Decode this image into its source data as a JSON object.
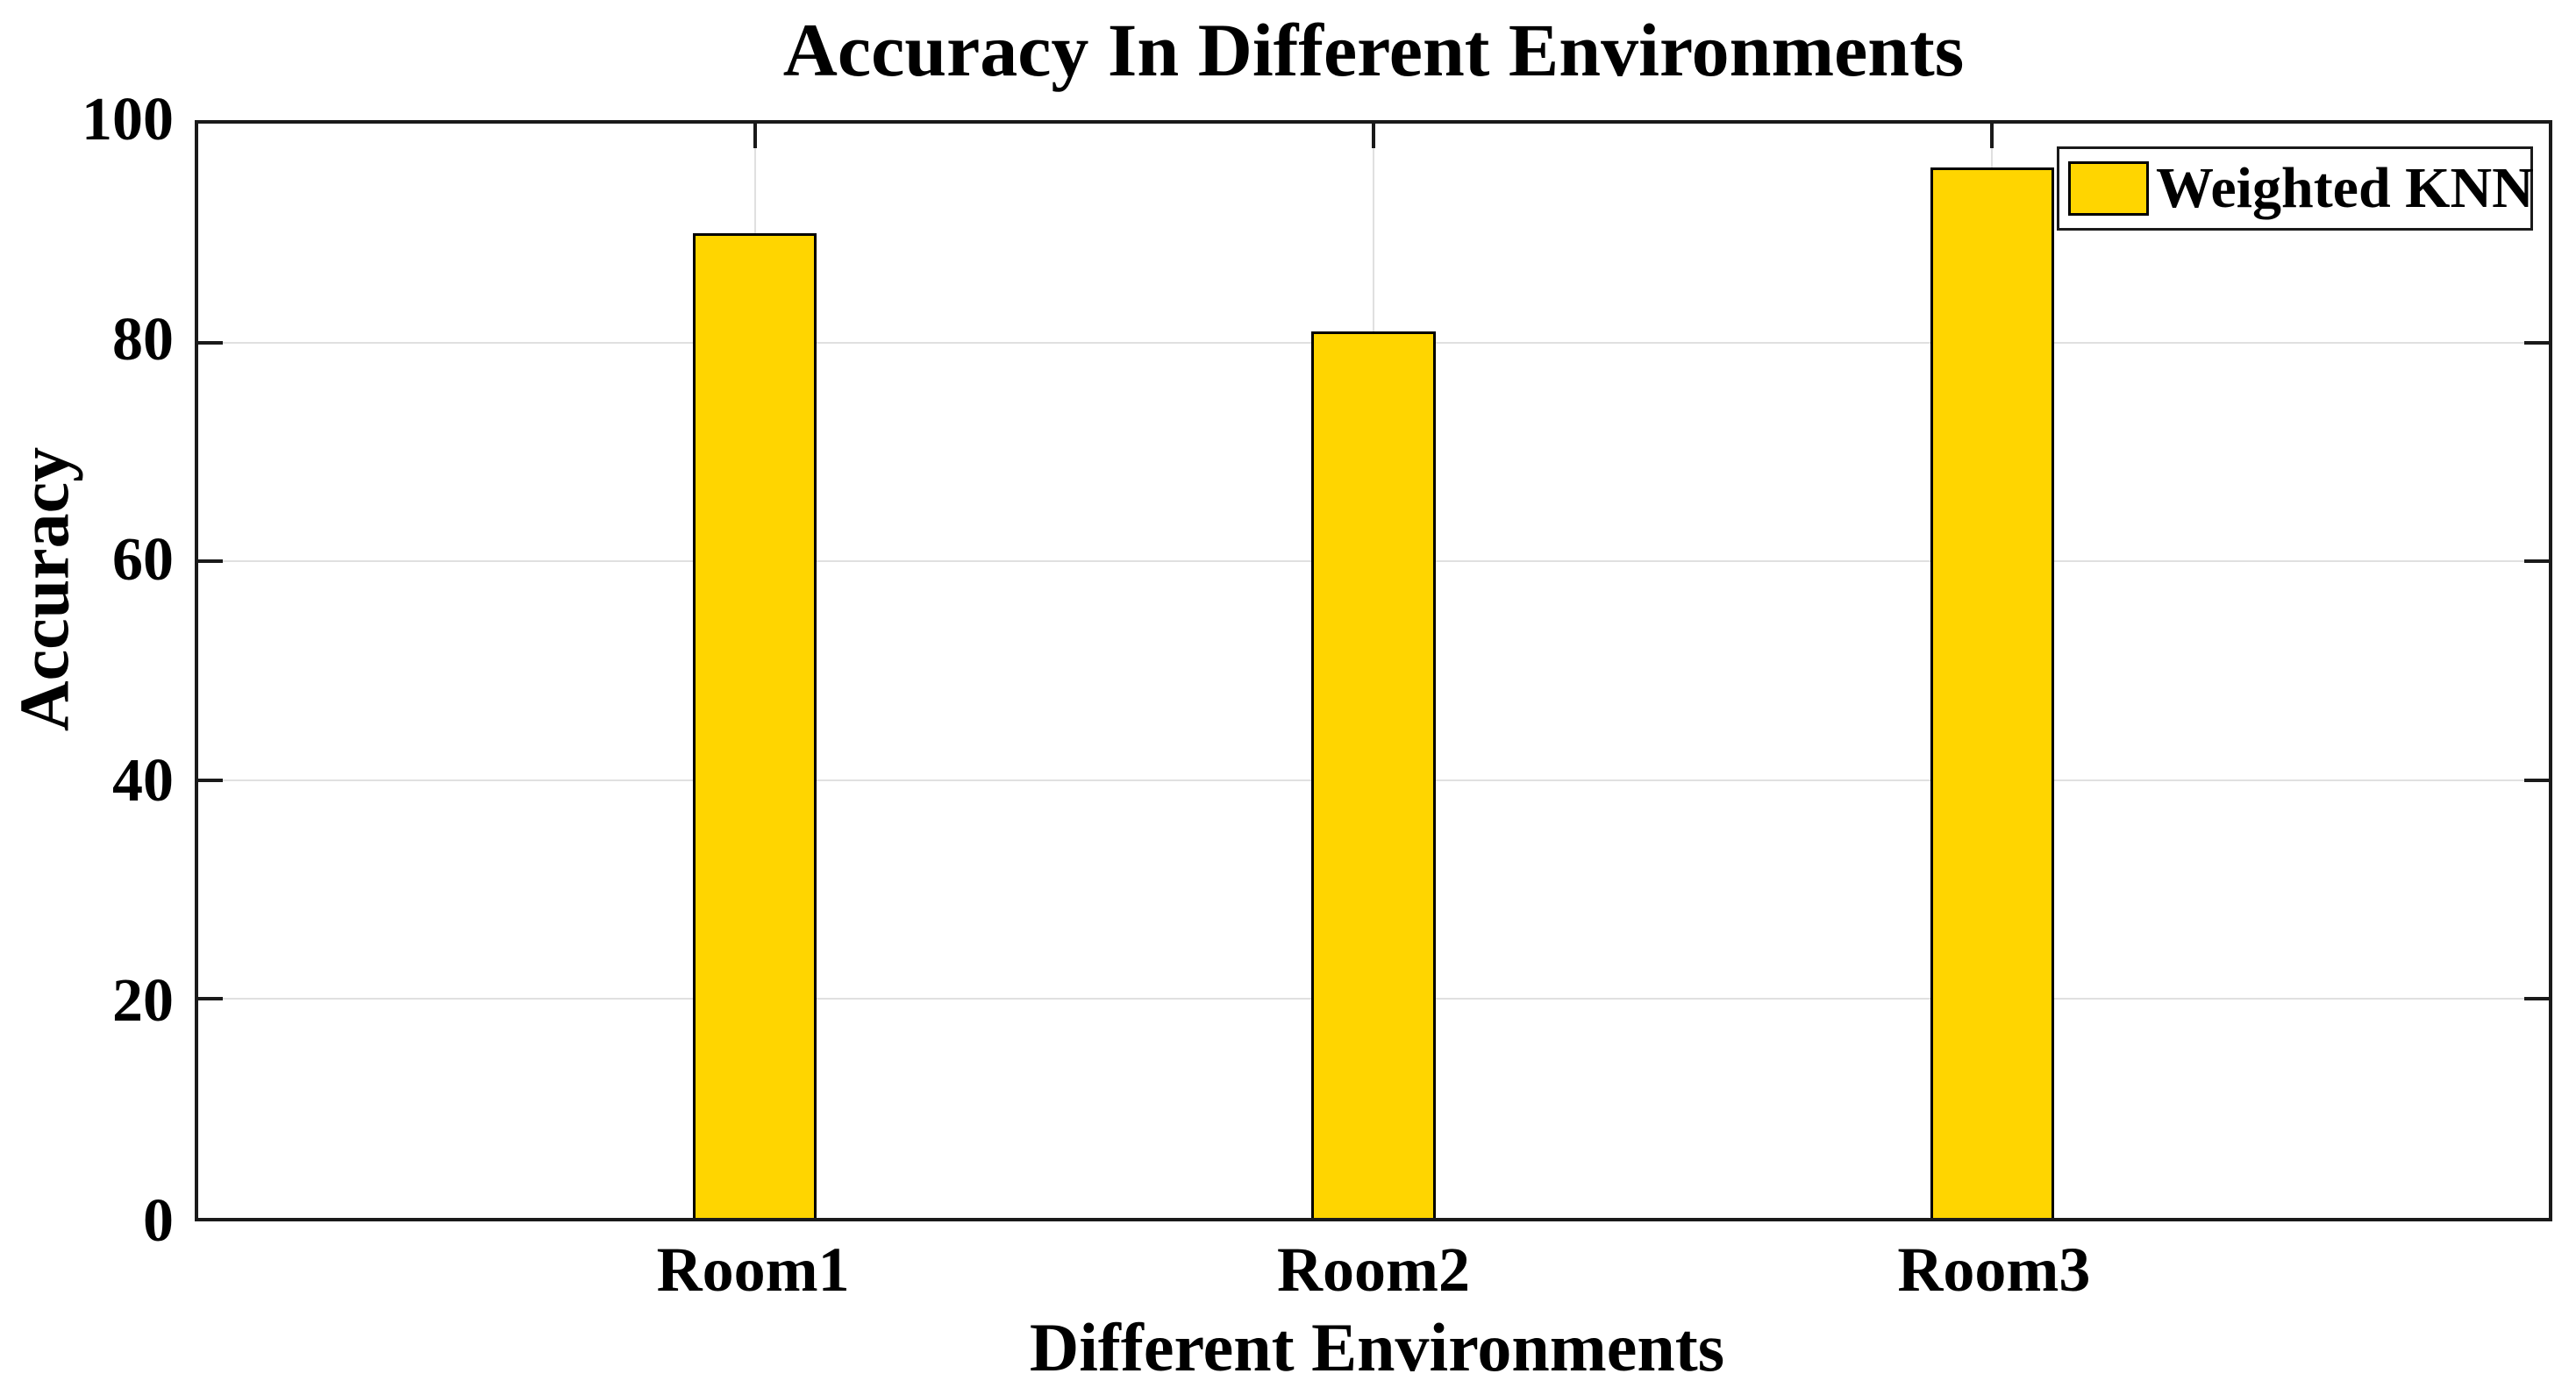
{
  "figure": {
    "background": "#ffffff"
  },
  "chart_data": {
    "type": "bar",
    "title": "Accuracy In Different Environments",
    "xlabel": "Different Environments",
    "ylabel": "Accuracy",
    "categories": [
      "Room1",
      "Room2",
      "Room3"
    ],
    "x": [
      1,
      2,
      3
    ],
    "series": [
      {
        "name": "Weighted KNN",
        "values": [
          90,
          81,
          96
        ]
      }
    ],
    "ylim": [
      0,
      100
    ],
    "xlim": [
      0.1,
      3.9
    ],
    "yticks": [
      0,
      20,
      40,
      60,
      80,
      100
    ],
    "bar_width_units": 0.2,
    "grid": true,
    "box": true,
    "legend_position": "top-right",
    "colors": {
      "bar_fill": "#FFD500",
      "bar_edge": "#000000",
      "axis": "#1a1a1a",
      "grid": "#E0E0E0",
      "text": "#000000",
      "legend_bg": "#FFFFFF"
    }
  }
}
